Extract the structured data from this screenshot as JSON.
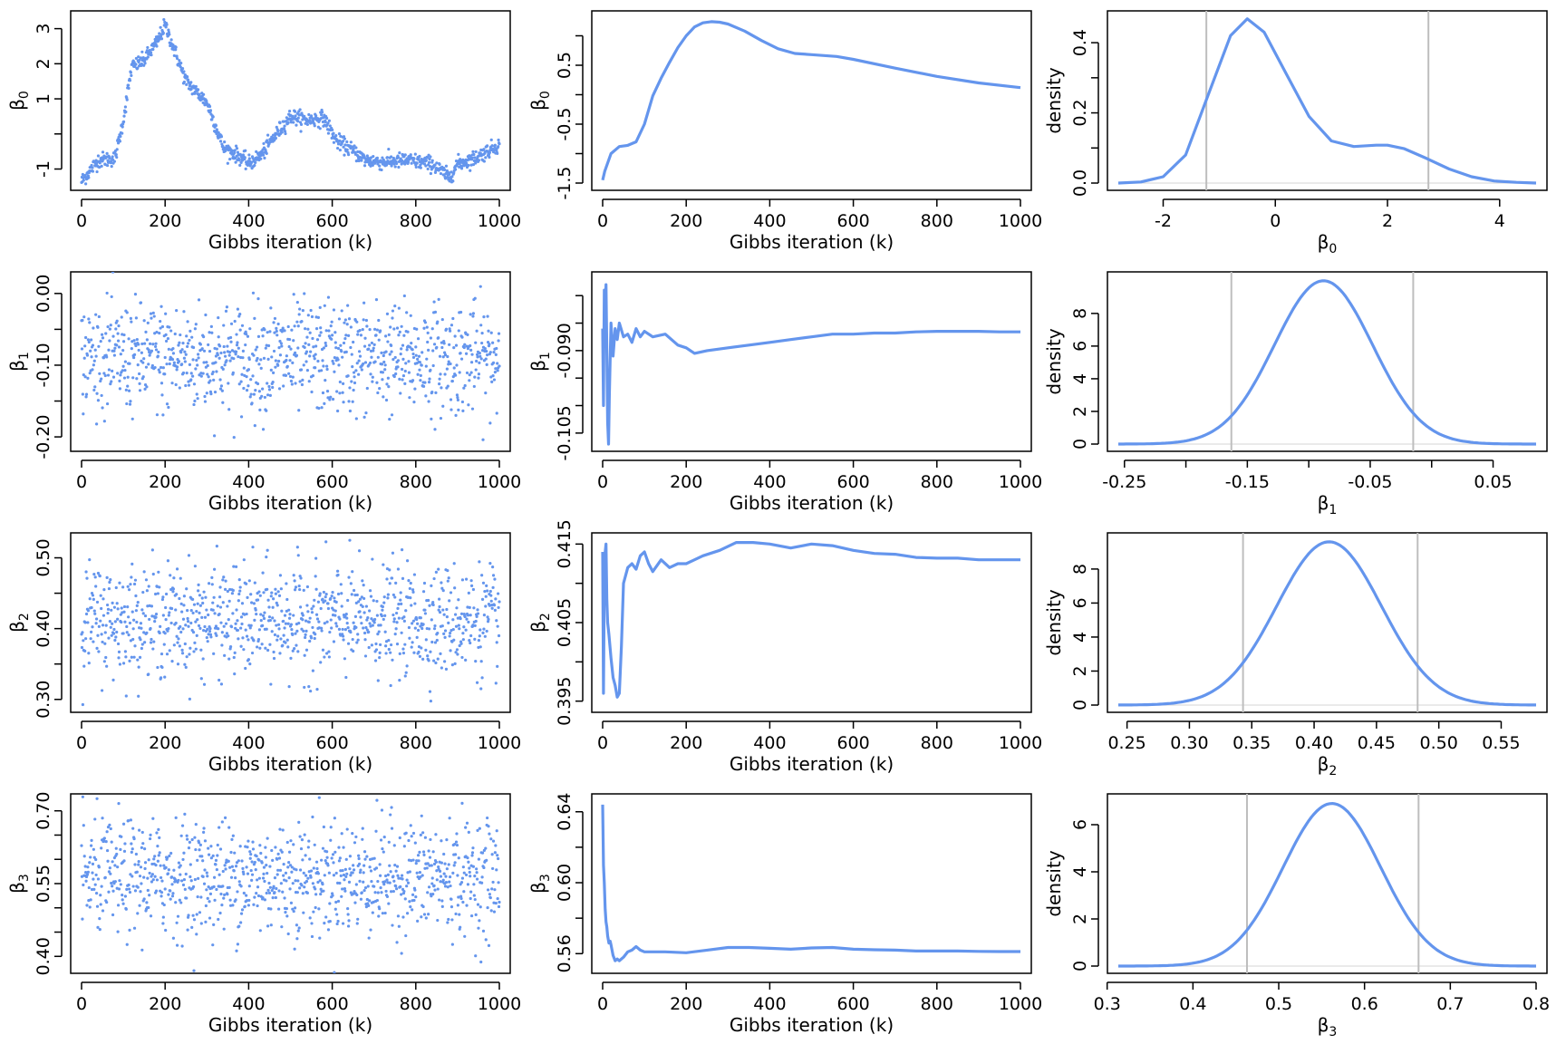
{
  "chart_data": [
    {
      "panel": "trace-beta0",
      "type": "scatter",
      "xlabel": "Gibbs iteration (k)",
      "ylabel": "β0",
      "xlim": [
        0,
        1000
      ],
      "ylim": [
        -1.4,
        3.3
      ],
      "xticks": [
        0,
        200,
        400,
        600,
        800,
        1000
      ],
      "yticks": [
        -1,
        1,
        2,
        3
      ],
      "ytick_labels": [
        "-1",
        "1",
        "2",
        "3"
      ],
      "ytick_marks": [
        -1,
        0,
        1,
        2,
        3
      ],
      "path_x": [
        0,
        40,
        80,
        100,
        120,
        150,
        180,
        200,
        225,
        250,
        300,
        340,
        380,
        400,
        430,
        460,
        500,
        540,
        580,
        610,
        640,
        680,
        720,
        780,
        840,
        880,
        900,
        940,
        970,
        1000
      ],
      "path_y": [
        -1.35,
        -0.75,
        -0.7,
        0.4,
        1.9,
        2.1,
        2.6,
        3.1,
        2.3,
        1.5,
        0.9,
        -0.4,
        -0.65,
        -0.85,
        -0.6,
        -0.1,
        0.5,
        0.4,
        0.45,
        -0.2,
        -0.4,
        -0.75,
        -0.8,
        -0.75,
        -0.85,
        -1.25,
        -0.85,
        -0.7,
        -0.5,
        -0.3
      ],
      "noise": 0.18
    },
    {
      "panel": "mean-beta0",
      "type": "line",
      "xlabel": "Gibbs iteration (k)",
      "ylabel": "β0",
      "xlim": [
        0,
        1000
      ],
      "ylim": [
        -1.5,
        1.3
      ],
      "xticks": [
        0,
        200,
        400,
        600,
        800,
        1000
      ],
      "yticks": [
        -1.5,
        -0.5,
        0.5
      ],
      "ytick_labels": [
        "-1.5",
        "-0.5",
        "0.5"
      ],
      "ytick_marks": [
        -1.5,
        -1,
        -0.5,
        0,
        0.5,
        1
      ],
      "x": [
        0,
        5,
        20,
        40,
        60,
        80,
        100,
        120,
        140,
        160,
        180,
        200,
        220,
        240,
        260,
        280,
        300,
        340,
        380,
        420,
        460,
        500,
        560,
        600,
        700,
        800,
        900,
        1000
      ],
      "y": [
        -1.45,
        -1.3,
        -1.0,
        -0.88,
        -0.86,
        -0.8,
        -0.5,
        -0.02,
        0.28,
        0.55,
        0.8,
        1.0,
        1.15,
        1.22,
        1.24,
        1.23,
        1.2,
        1.08,
        0.92,
        0.78,
        0.7,
        0.68,
        0.65,
        0.6,
        0.45,
        0.31,
        0.2,
        0.12
      ]
    },
    {
      "panel": "density-beta0",
      "type": "line",
      "xlabel": "β0",
      "ylabel": "density",
      "xlim": [
        -2.8,
        4.65
      ],
      "ylim": [
        0,
        0.47
      ],
      "xticks": [
        -2,
        0,
        2,
        4
      ],
      "yticks": [
        0,
        0.2,
        0.4
      ],
      "ytick_labels": [
        "0.0",
        "0.2",
        "0.4"
      ],
      "ytick_marks": [
        0,
        0.1,
        0.2,
        0.3,
        0.4
      ],
      "x": [
        -2.8,
        -2.4,
        -2.0,
        -1.6,
        -1.2,
        -0.8,
        -0.5,
        -0.2,
        0.2,
        0.6,
        1.0,
        1.4,
        1.8,
        2.0,
        2.3,
        2.7,
        3.1,
        3.5,
        3.9,
        4.3,
        4.65
      ],
      "y": [
        0.0,
        0.003,
        0.018,
        0.08,
        0.25,
        0.42,
        0.468,
        0.43,
        0.31,
        0.19,
        0.12,
        0.104,
        0.108,
        0.108,
        0.098,
        0.07,
        0.04,
        0.018,
        0.006,
        0.002,
        0.0
      ],
      "ci_lines": [
        -1.23,
        2.73
      ]
    },
    {
      "panel": "trace-beta1",
      "type": "scatter",
      "xlabel": "Gibbs iteration (k)",
      "ylabel": "β1",
      "xlim": [
        0,
        1000
      ],
      "ylim": [
        -0.21,
        0.02
      ],
      "xticks": [
        0,
        200,
        400,
        600,
        800,
        1000
      ],
      "yticks": [
        -0.2,
        -0.1,
        0.0
      ],
      "ytick_labels": [
        "-0.20",
        "-0.10",
        "0.00"
      ],
      "ytick_marks": [
        -0.2,
        -0.15,
        -0.1,
        -0.05,
        0.0
      ],
      "center": -0.09,
      "spread": 0.038
    },
    {
      "panel": "mean-beta1",
      "type": "line",
      "xlabel": "Gibbs iteration (k)",
      "ylabel": "β1",
      "xlim": [
        0,
        1000
      ],
      "ylim": [
        -0.107,
        -0.077
      ],
      "xticks": [
        0,
        200,
        400,
        600,
        800,
        1000
      ],
      "yticks": [
        -0.105,
        -0.09
      ],
      "ytick_labels": [
        "-0.105",
        "-0.090"
      ],
      "ytick_marks": [
        -0.105,
        -0.1,
        -0.095,
        -0.09,
        -0.085,
        -0.08
      ],
      "x": [
        0,
        2,
        4,
        6,
        8,
        10,
        12,
        14,
        16,
        20,
        25,
        30,
        35,
        40,
        50,
        60,
        70,
        80,
        90,
        100,
        120,
        150,
        180,
        200,
        220,
        250,
        300,
        350,
        400,
        450,
        500,
        550,
        600,
        650,
        700,
        750,
        800,
        850,
        900,
        950,
        1000
      ],
      "y": [
        -0.086,
        -0.1,
        -0.079,
        -0.083,
        -0.078,
        -0.09,
        -0.103,
        -0.107,
        -0.098,
        -0.085,
        -0.091,
        -0.086,
        -0.088,
        -0.085,
        -0.0875,
        -0.087,
        -0.0885,
        -0.086,
        -0.0875,
        -0.0865,
        -0.0875,
        -0.087,
        -0.089,
        -0.0895,
        -0.0905,
        -0.09,
        -0.0895,
        -0.089,
        -0.0885,
        -0.088,
        -0.0875,
        -0.087,
        -0.087,
        -0.0868,
        -0.0868,
        -0.0866,
        -0.0865,
        -0.0865,
        -0.0865,
        -0.0866,
        -0.0866
      ]
    },
    {
      "panel": "density-beta1",
      "type": "line",
      "xlabel": "β1",
      "ylabel": "density",
      "xlim": [
        -0.255,
        0.085
      ],
      "ylim": [
        0,
        10.1
      ],
      "xticks": [
        -0.25,
        -0.15,
        -0.05,
        0.05
      ],
      "xtick_labels": [
        "-0.25",
        "-0.15",
        "-0.05",
        "0.05"
      ],
      "xtick_marks": [
        -0.25,
        -0.2,
        -0.15,
        -0.1,
        -0.05,
        0.0,
        0.05
      ],
      "yticks": [
        0,
        2,
        4,
        6,
        8
      ],
      "ytick_labels": [
        "0",
        "2",
        "4",
        "6",
        "8"
      ],
      "curve": {
        "mean": -0.088,
        "sd": 0.04,
        "peak": 10.0
      },
      "ci_lines": [
        -0.163,
        -0.015
      ]
    },
    {
      "panel": "trace-beta2",
      "type": "scatter",
      "xlabel": "Gibbs iteration (k)",
      "ylabel": "β2",
      "xlim": [
        0,
        1000
      ],
      "ylim": [
        0.292,
        0.525
      ],
      "xticks": [
        0,
        200,
        400,
        600,
        800,
        1000
      ],
      "yticks": [
        0.3,
        0.4,
        0.5
      ],
      "ytick_labels": [
        "0.30",
        "0.40",
        "0.50"
      ],
      "ytick_marks": [
        0.3,
        0.35,
        0.4,
        0.45,
        0.5
      ],
      "center": 0.412,
      "spread": 0.038
    },
    {
      "panel": "mean-beta2",
      "type": "line",
      "xlabel": "Gibbs iteration (k)",
      "ylabel": "β2",
      "xlim": [
        0,
        1000
      ],
      "ylim": [
        0.3945,
        0.4155
      ],
      "xticks": [
        0,
        200,
        400,
        600,
        800,
        1000
      ],
      "yticks": [
        0.395,
        0.405,
        0.415
      ],
      "ytick_labels": [
        "0.395",
        "0.405",
        "0.415"
      ],
      "ytick_marks": [
        0.395,
        0.4,
        0.405,
        0.41,
        0.415
      ],
      "x": [
        0,
        2,
        4,
        6,
        8,
        10,
        12,
        15,
        20,
        25,
        30,
        35,
        40,
        45,
        50,
        60,
        70,
        80,
        90,
        100,
        110,
        120,
        140,
        160,
        180,
        200,
        240,
        280,
        320,
        360,
        400,
        450,
        500,
        550,
        600,
        650,
        700,
        750,
        800,
        850,
        900,
        950,
        1000
      ],
      "y": [
        0.414,
        0.396,
        0.41,
        0.414,
        0.415,
        0.408,
        0.405,
        0.4035,
        0.4005,
        0.398,
        0.397,
        0.3955,
        0.396,
        0.402,
        0.41,
        0.412,
        0.4125,
        0.4118,
        0.4135,
        0.414,
        0.4125,
        0.4115,
        0.413,
        0.412,
        0.4125,
        0.4125,
        0.4135,
        0.4142,
        0.4152,
        0.4152,
        0.415,
        0.4145,
        0.415,
        0.4148,
        0.4142,
        0.4138,
        0.4137,
        0.4133,
        0.4132,
        0.4132,
        0.413,
        0.413,
        0.413
      ]
    },
    {
      "panel": "density-beta2",
      "type": "line",
      "xlabel": "β2",
      "ylabel": "density",
      "xlim": [
        0.243,
        0.578
      ],
      "ylim": [
        0,
        9.7
      ],
      "xticks": [
        0.25,
        0.3,
        0.35,
        0.4,
        0.45,
        0.5,
        0.55
      ],
      "xtick_labels": [
        "0.25",
        "0.30",
        "0.35",
        "0.40",
        "0.45",
        "0.50",
        "0.55"
      ],
      "yticks": [
        0,
        2,
        4,
        6,
        8
      ],
      "ytick_labels": [
        "0",
        "2",
        "4",
        "6",
        "8"
      ],
      "curve": {
        "mean": 0.412,
        "sd": 0.042,
        "peak": 9.6
      },
      "ci_lines": [
        0.343,
        0.483
      ]
    },
    {
      "panel": "trace-beta3",
      "type": "scatter",
      "xlabel": "Gibbs iteration (k)",
      "ylabel": "β3",
      "xlim": [
        0,
        1000
      ],
      "ylim": [
        0.38,
        0.72
      ],
      "xticks": [
        0,
        200,
        400,
        600,
        800,
        1000
      ],
      "yticks": [
        0.4,
        0.55,
        0.7
      ],
      "ytick_labels": [
        "0.40",
        "0.55",
        "0.70"
      ],
      "ytick_marks": [
        0.4,
        0.45,
        0.5,
        0.55,
        0.6,
        0.65,
        0.7
      ],
      "center": 0.563,
      "spread": 0.058
    },
    {
      "panel": "mean-beta3",
      "type": "line",
      "xlabel": "Gibbs iteration (k)",
      "ylabel": "β3",
      "xlim": [
        0,
        1000
      ],
      "ylim": [
        0.553,
        0.646
      ],
      "xticks": [
        0,
        200,
        400,
        600,
        800,
        1000
      ],
      "yticks": [
        0.56,
        0.6,
        0.64
      ],
      "ytick_labels": [
        "0.56",
        "0.60",
        "0.64"
      ],
      "ytick_marks": [
        0.56,
        0.58,
        0.6,
        0.62,
        0.64
      ],
      "x": [
        0,
        2,
        4,
        6,
        8,
        10,
        12,
        15,
        18,
        20,
        25,
        30,
        35,
        40,
        50,
        60,
        70,
        80,
        90,
        100,
        120,
        150,
        200,
        250,
        300,
        350,
        400,
        450,
        500,
        550,
        600,
        650,
        700,
        750,
        800,
        850,
        900,
        950,
        1000
      ],
      "y": [
        0.644,
        0.61,
        0.6,
        0.585,
        0.578,
        0.575,
        0.57,
        0.566,
        0.567,
        0.565,
        0.559,
        0.556,
        0.557,
        0.556,
        0.558,
        0.561,
        0.562,
        0.564,
        0.562,
        0.561,
        0.561,
        0.561,
        0.5605,
        0.562,
        0.5635,
        0.5635,
        0.563,
        0.5625,
        0.5632,
        0.5635,
        0.5625,
        0.5622,
        0.562,
        0.5615,
        0.5615,
        0.5615,
        0.5613,
        0.5612,
        0.5612
      ]
    },
    {
      "panel": "density-beta3",
      "type": "line",
      "xlabel": "β3",
      "ylabel": "density",
      "xlim": [
        0.313,
        0.8
      ],
      "ylim": [
        0,
        7.0
      ],
      "xticks": [
        0.3,
        0.4,
        0.5,
        0.6,
        0.7,
        0.8
      ],
      "xtick_labels": [
        "0.3",
        "0.4",
        "0.5",
        "0.6",
        "0.7",
        "0.8"
      ],
      "yticks": [
        0,
        2,
        4,
        6
      ],
      "ytick_labels": [
        "0",
        "2",
        "4",
        "6"
      ],
      "curve": {
        "mean": 0.562,
        "sd": 0.057,
        "peak": 6.9
      },
      "ci_lines": [
        0.463,
        0.663
      ]
    }
  ],
  "colors": {
    "series": "#6495ED",
    "ci": "#BEBEBE",
    "axis": "#000000"
  }
}
